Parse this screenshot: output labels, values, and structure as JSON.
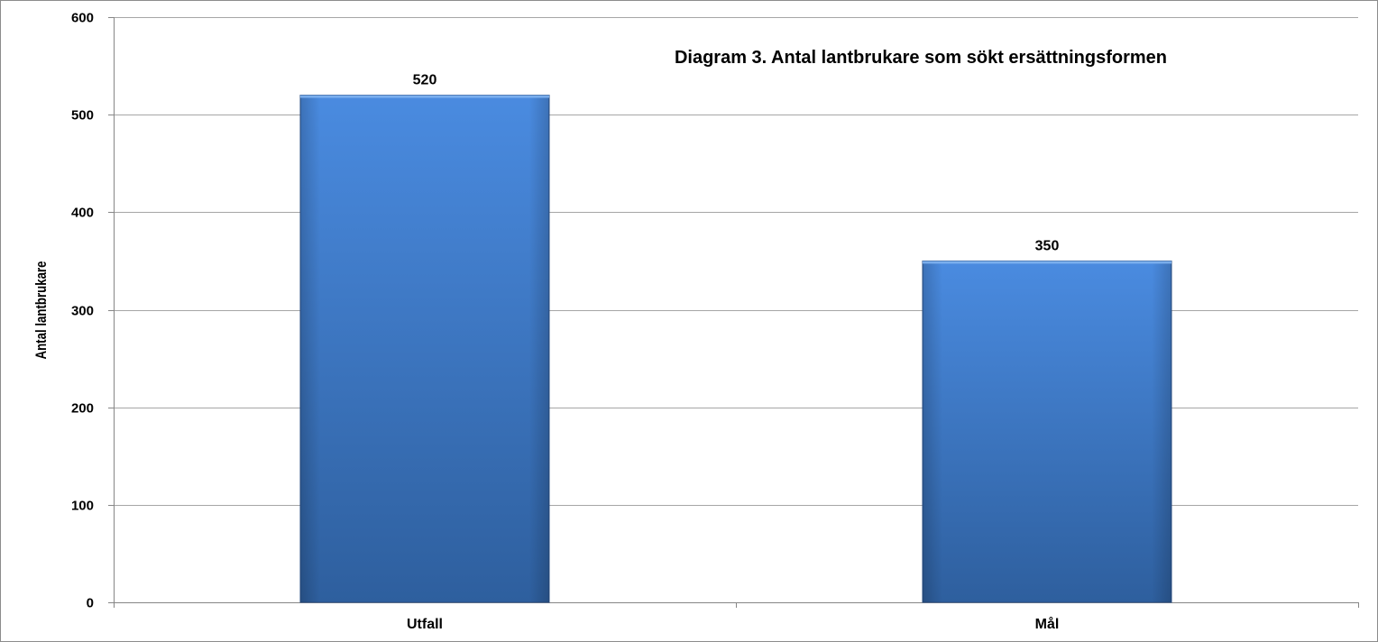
{
  "chart_data": {
    "type": "bar",
    "title": "Diagram 3. Antal lantbrukare som sökt ersättningsformen",
    "xlabel": "",
    "ylabel": "Antal lantbrukare",
    "categories": [
      "Utfall",
      "Mål"
    ],
    "values": [
      520,
      350
    ],
    "data_labels": [
      "520",
      "350"
    ],
    "ylim": [
      0,
      600
    ],
    "yticks": [
      0,
      100,
      200,
      300,
      400,
      500,
      600
    ],
    "ytick_labels": [
      "0",
      "100",
      "200",
      "300",
      "400",
      "500",
      "600"
    ],
    "grid": true,
    "legend": "none",
    "colors": {
      "bar_top": "#4a8be0",
      "bar_bottom": "#2e5f9e",
      "bar_edge": "#2a4f85",
      "grid": "#a6a6a6",
      "axis": "#868686"
    }
  }
}
